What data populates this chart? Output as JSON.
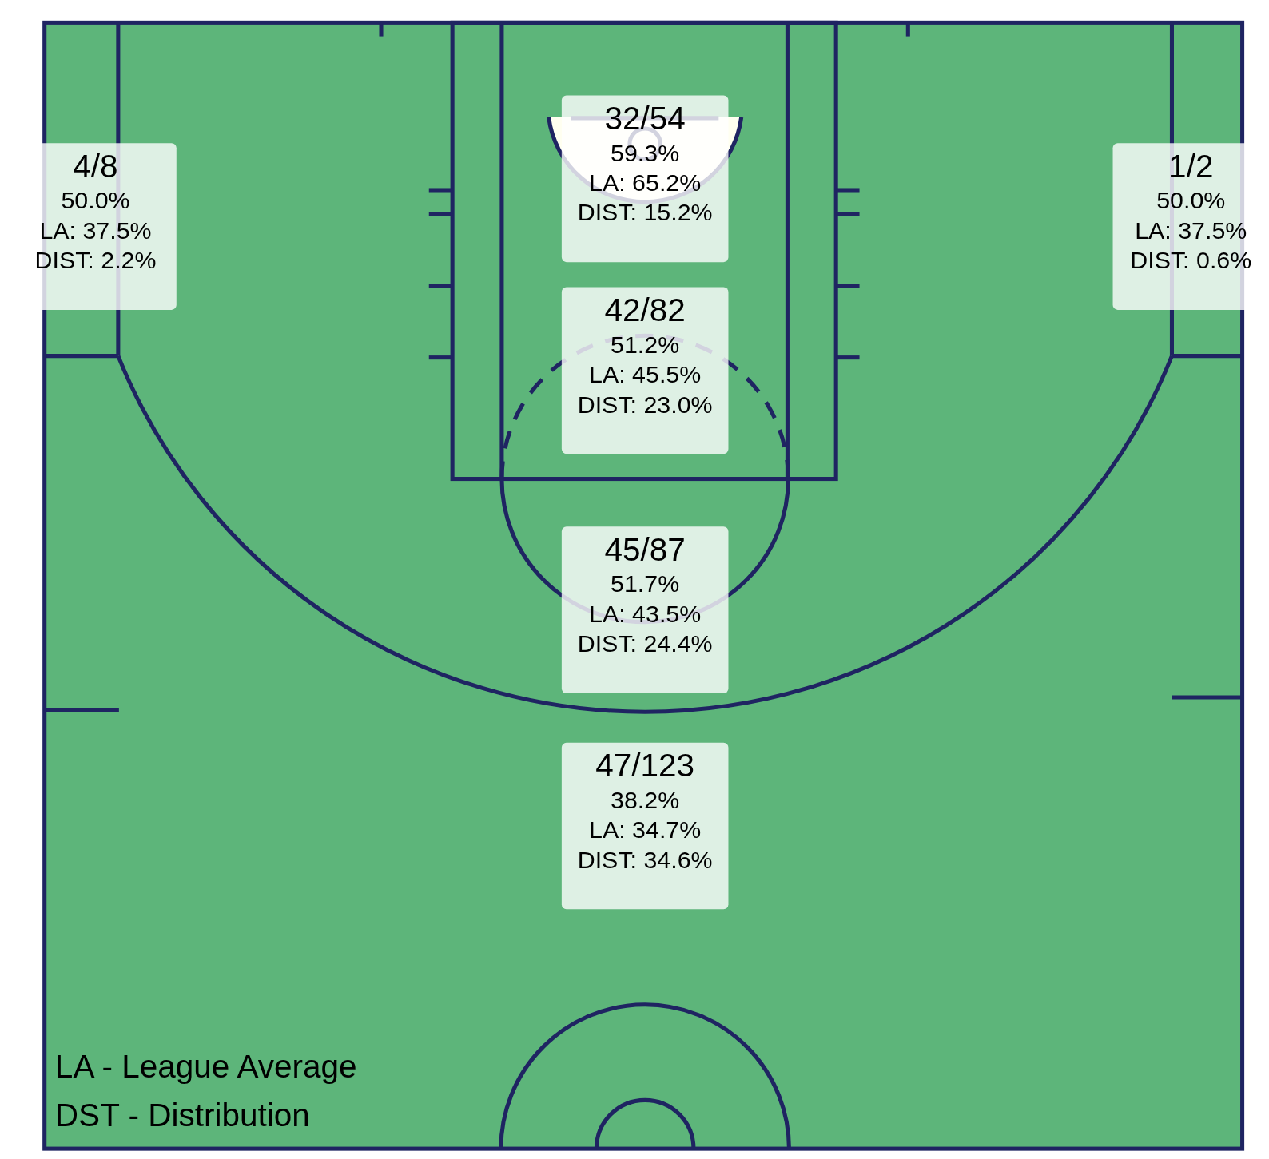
{
  "chart_data": {
    "type": "other",
    "categories": [
      "32/54",
      "42/82",
      "45/87",
      "47/123",
      "4/8",
      "1/2"
    ],
    "series": [
      {
        "colors": [
          "#ffffff",
          "#ffffff",
          "#ffffff",
          "#ffffff",
          "#ffffff",
          "#ffffff"
        ],
        "values": [
          59.3,
          51.2,
          51.7,
          38.2,
          50.0,
          50.0
        ],
        "value_labels": [
          "59.3%",
          "51.2%",
          "51.7%",
          "38.2%",
          "50.0%",
          "50.0%"
        ]
      },
      {
        "values": [
          65.2,
          45.5,
          43.5,
          34.7,
          37.5,
          37.5
        ],
        "value_labels": [
          "LA: 65.2%",
          "LA: 45.5%",
          "LA: 43.5%",
          "LA: 34.7%",
          "LA: 37.5%",
          "LA: 37.5%"
        ]
      },
      {
        "values": [
          15.2,
          23.0,
          24.4,
          34.6,
          2.2,
          0.6
        ],
        "value_labels": [
          "DIST: 15.2%",
          "DIST: 23.0%",
          "DIST: 24.4%",
          "DIST: 34.6%",
          "DIST: 2.2%",
          "DIST: 0.6%"
        ]
      }
    ],
    "annotations": [
      "LA - League Average\nDST - Distribution"
    ]
  }
}
